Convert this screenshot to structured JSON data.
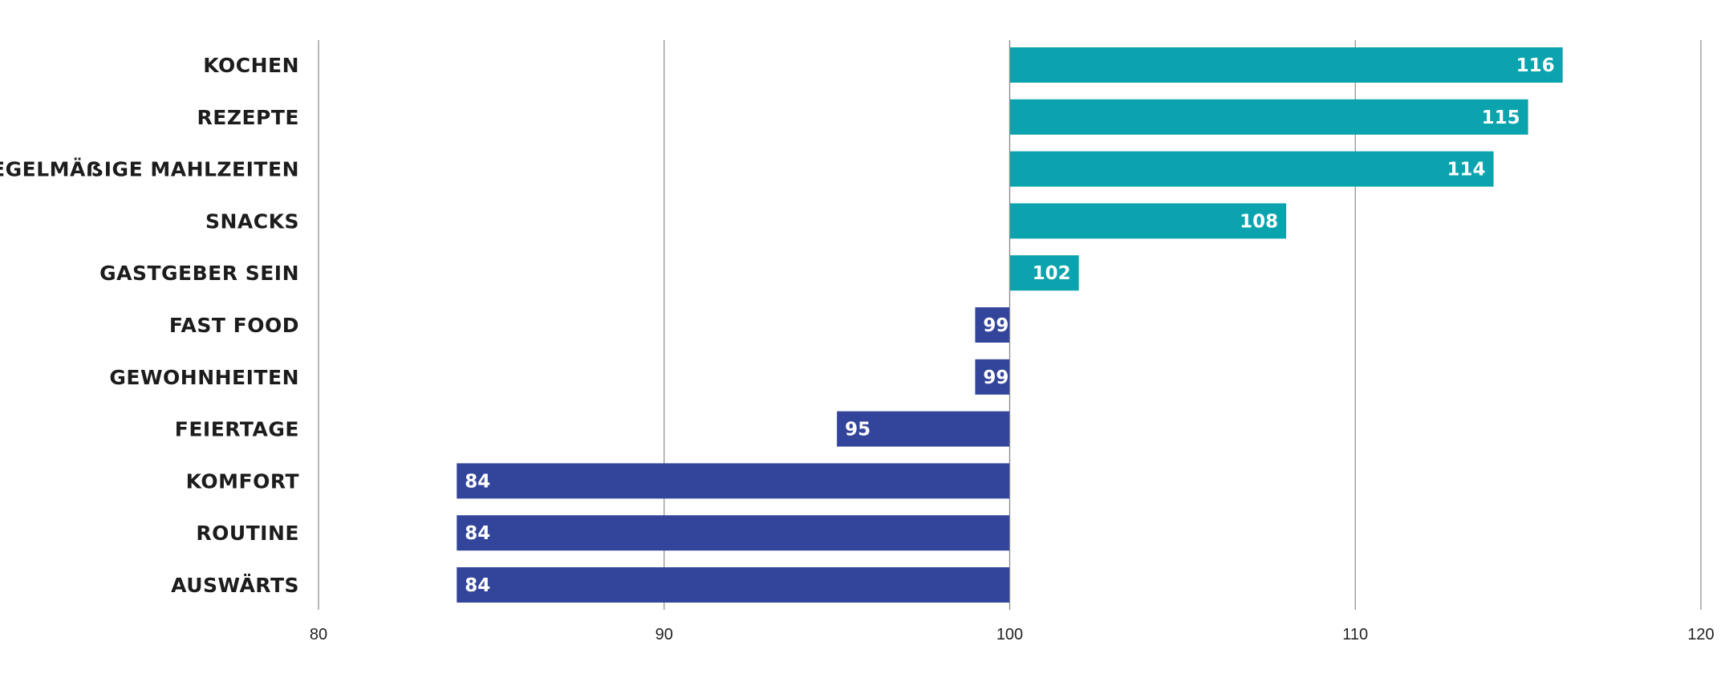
{
  "chart_data": {
    "type": "bar",
    "orientation": "horizontal",
    "baseline": 100,
    "categories": [
      "KOCHEN",
      "REZEPTE",
      "REGELMÄẞIGE MAHLZEITEN",
      "SNACKS",
      "GASTGEBER SEIN",
      "FAST FOOD",
      "GEWOHNHEITEN",
      "FEIERTAGE",
      "KOMFORT",
      "ROUTINE",
      "AUSWÄRTS"
    ],
    "values": [
      116,
      115,
      114,
      108,
      102,
      99,
      99,
      95,
      84,
      84,
      84
    ],
    "value_labels": [
      "116",
      "115",
      "114",
      "108",
      "102",
      "99",
      "99",
      "95",
      "84",
      "84",
      "84"
    ],
    "xlim": [
      80,
      120
    ],
    "xticks": [
      80,
      90,
      100,
      110,
      120
    ],
    "xtick_labels": [
      "80",
      "90",
      "100",
      "110",
      "120"
    ],
    "grid": true,
    "colors": {
      "above": "#0aa3ae",
      "below": "#33459b"
    }
  }
}
